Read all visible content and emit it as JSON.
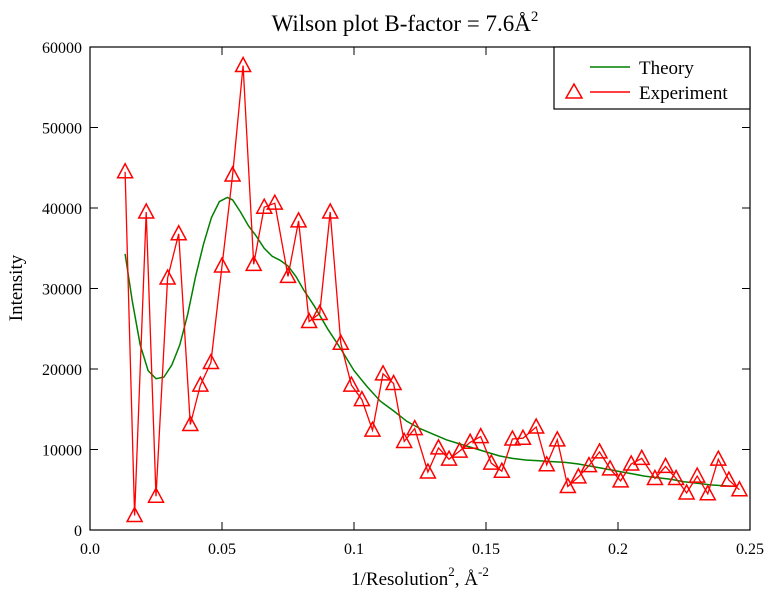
{
  "chart_data": {
    "type": "line",
    "title": {
      "main": "Wilson plot B-factor = 7.6Å",
      "sup": "2"
    },
    "xlabel": {
      "main": "1/Resolution",
      "sup1": "2",
      "mid": ", Å",
      "sup2": "-2"
    },
    "ylabel": "Intensity",
    "xlim": [
      0.0,
      0.25
    ],
    "ylim": [
      0,
      60000
    ],
    "xticks": [
      0.0,
      0.05,
      0.1,
      0.15,
      0.2,
      0.25
    ],
    "xtick_labels": [
      "0.0",
      "0.05",
      "0.1",
      "0.15",
      "0.2",
      "0.25"
    ],
    "yticks": [
      0,
      10000,
      20000,
      30000,
      40000,
      50000,
      60000
    ],
    "ytick_labels": [
      "0",
      "10000",
      "20000",
      "30000",
      "40000",
      "50000",
      "60000"
    ],
    "grid": false,
    "legend_position": "top-right",
    "colors": {
      "theory": "#008000",
      "experiment": "#ff0000"
    },
    "series": [
      {
        "name": "Theory",
        "marker": "none",
        "x": [
          0.0133,
          0.016,
          0.019,
          0.022,
          0.025,
          0.028,
          0.031,
          0.034,
          0.037,
          0.04,
          0.043,
          0.046,
          0.049,
          0.052,
          0.054,
          0.057,
          0.06,
          0.063,
          0.066,
          0.069,
          0.072,
          0.075,
          0.078,
          0.081,
          0.085,
          0.09,
          0.095,
          0.1,
          0.105,
          0.11,
          0.115,
          0.12,
          0.125,
          0.13,
          0.135,
          0.14,
          0.145,
          0.15,
          0.155,
          0.16,
          0.165,
          0.17,
          0.175,
          0.18,
          0.185,
          0.19,
          0.195,
          0.2,
          0.205,
          0.21,
          0.215,
          0.22,
          0.225,
          0.23,
          0.235,
          0.24,
          0.245
        ],
        "y": [
          34300,
          28500,
          23000,
          19800,
          18800,
          19000,
          20500,
          23000,
          26800,
          31500,
          35500,
          38800,
          40800,
          41300,
          41000,
          39500,
          37800,
          36500,
          35000,
          34000,
          33500,
          32800,
          31500,
          29800,
          27800,
          25000,
          22500,
          19800,
          17800,
          16000,
          14800,
          13500,
          12600,
          11900,
          11200,
          10700,
          10200,
          9700,
          9200,
          8900,
          8700,
          8600,
          8500,
          8400,
          8200,
          7900,
          7600,
          7300,
          7000,
          6700,
          6500,
          6300,
          6000,
          5800,
          5600,
          5500,
          5400
        ]
      },
      {
        "name": "Experiment",
        "marker": "triangle",
        "x": [
          0.0133,
          0.0169,
          0.0213,
          0.025,
          0.0294,
          0.0336,
          0.038,
          0.0418,
          0.0458,
          0.05,
          0.054,
          0.058,
          0.062,
          0.066,
          0.07,
          0.075,
          0.079,
          0.083,
          0.087,
          0.091,
          0.095,
          0.099,
          0.103,
          0.107,
          0.111,
          0.115,
          0.119,
          0.123,
          0.128,
          0.132,
          0.136,
          0.14,
          0.144,
          0.148,
          0.152,
          0.156,
          0.16,
          0.164,
          0.169,
          0.173,
          0.177,
          0.181,
          0.185,
          0.189,
          0.193,
          0.197,
          0.201,
          0.205,
          0.209,
          0.214,
          0.218,
          0.222,
          0.226,
          0.23,
          0.234,
          0.238,
          0.242,
          0.246
        ],
        "y": [
          44500,
          1800,
          39500,
          4200,
          31300,
          36800,
          13100,
          18000,
          20800,
          32800,
          44100,
          57700,
          33000,
          40100,
          40600,
          31500,
          38400,
          25900,
          26900,
          39500,
          23200,
          18000,
          16200,
          12400,
          19400,
          18200,
          11000,
          12600,
          7200,
          10200,
          8800,
          9800,
          10900,
          11600,
          8300,
          7300,
          11300,
          11400,
          12800,
          8100,
          11200,
          5400,
          6600,
          8000,
          9700,
          7600,
          6100,
          8200,
          8900,
          6400,
          7900,
          6400,
          4600,
          6700,
          4500,
          8800,
          6200,
          5000
        ]
      }
    ]
  }
}
